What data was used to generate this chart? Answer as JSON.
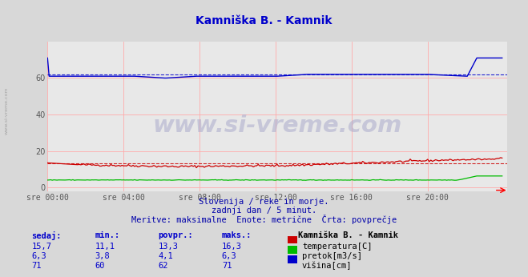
{
  "title": "Kamniška B. - Kamnik",
  "title_color": "#0000cc",
  "bg_color": "#d8d8d8",
  "plot_bg_color": "#e8e8e8",
  "grid_color": "#ffaaaa",
  "xlabel_times": [
    "sre 00:00",
    "sre 04:00",
    "sre 08:00",
    "sre 12:00",
    "sre 16:00",
    "sre 20:00"
  ],
  "xtick_positions": [
    0,
    48,
    96,
    144,
    192,
    240
  ],
  "ytick_positions": [
    0,
    20,
    40,
    60
  ],
  "ytick_labels": [
    "0",
    "20",
    "40",
    "60"
  ],
  "ylim": [
    -2,
    80
  ],
  "xlim": [
    0,
    290
  ],
  "n_points": 288,
  "temp_avg": 13.3,
  "temp_color": "#cc0000",
  "flow_color": "#00bb00",
  "height_color": "#0000cc",
  "height_avg": 62,
  "watermark_text": "www.si-vreme.com",
  "watermark_color": "#aaaacc",
  "sidebar_text": "www.si-vreme.com",
  "footer_line1": "Slovenija / reke in morje.",
  "footer_line2": "zadnji dan / 5 minut.",
  "footer_line3": "Meritve: maksimalne  Enote: metrične  Črta: povprečje",
  "footer_color": "#0000aa",
  "table_header_color": "#0000cc",
  "station_name": "Kamniška B. - Kamnik",
  "rows": [
    {
      "sedaj": "15,7",
      "min": "11,1",
      "povpr": "13,3",
      "maks": "16,3",
      "label": "temperatura[C]",
      "color": "#cc0000"
    },
    {
      "sedaj": "6,3",
      "min": "3,8",
      "povpr": "4,1",
      "maks": "6,3",
      "label": "pretok[m3/s]",
      "color": "#00bb00"
    },
    {
      "sedaj": "71",
      "min": "60",
      "povpr": "62",
      "maks": "71",
      "label": "višina[cm]",
      "color": "#0000cc"
    }
  ]
}
